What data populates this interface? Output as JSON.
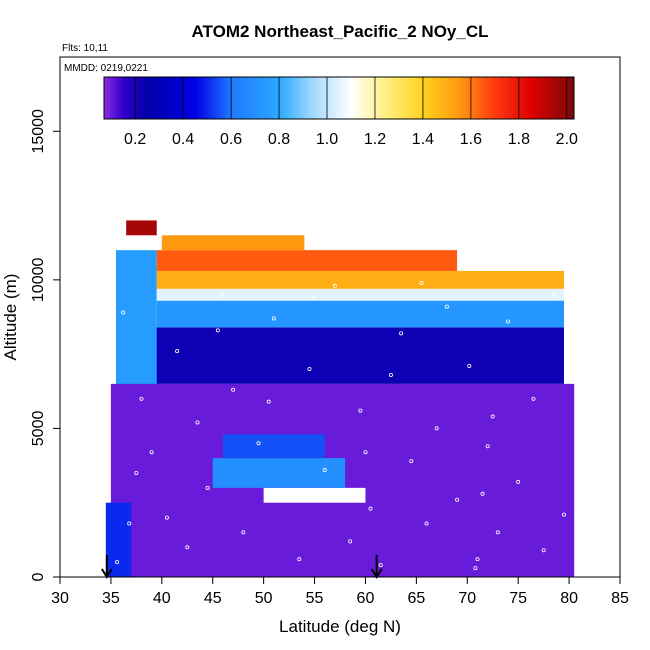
{
  "chart_data": {
    "type": "heatmap",
    "title": "ATOM2 Northeast_Pacific_2 NOy_CL",
    "flights_label": "Flts: 10,11",
    "dates_label": "MMDD: 0219,0221",
    "xlabel": "Latitude (deg N)",
    "ylabel": "Altitude (m)",
    "xlim": [
      30,
      85
    ],
    "ylim": [
      0,
      17500
    ],
    "x_ticks": [
      "30",
      "35",
      "40",
      "45",
      "50",
      "55",
      "60",
      "65",
      "70",
      "75",
      "80",
      "85"
    ],
    "y_ticks": [
      "0",
      "5000",
      "10000",
      "15000"
    ],
    "colorbar": {
      "range": [
        0.07,
        2.03
      ],
      "ticks": [
        "0.2",
        "0.4",
        "0.6",
        "0.8",
        "1.0",
        "1.2",
        "1.4",
        "1.6",
        "1.8",
        "2.0"
      ],
      "stops": [
        {
          "v": 0.07,
          "c": "#8a2be2"
        },
        {
          "v": 0.15,
          "c": "#3300cc"
        },
        {
          "v": 0.25,
          "c": "#0000a8"
        },
        {
          "v": 0.45,
          "c": "#0000e6"
        },
        {
          "v": 0.6,
          "c": "#1e78ff"
        },
        {
          "v": 0.8,
          "c": "#2aa8ff"
        },
        {
          "v": 0.95,
          "c": "#a8dcff"
        },
        {
          "v": 1.1,
          "c": "#ffffff"
        },
        {
          "v": 1.25,
          "c": "#ffef80"
        },
        {
          "v": 1.4,
          "c": "#ffd21e"
        },
        {
          "v": 1.55,
          "c": "#ff9a10"
        },
        {
          "v": 1.7,
          "c": "#ff3a10"
        },
        {
          "v": 1.85,
          "c": "#e00000"
        },
        {
          "v": 2.03,
          "c": "#7a0a0a"
        }
      ]
    },
    "cells": [
      {
        "x0": 35,
        "x1": 80.5,
        "y0": 0,
        "y1": 6500,
        "v": 0.1
      },
      {
        "x0": 35.5,
        "x1": 79.5,
        "y0": 6500,
        "y1": 8400,
        "v": 0.22
      },
      {
        "x0": 35.5,
        "x1": 39.5,
        "y0": 6500,
        "y1": 11000,
        "v": 0.75
      },
      {
        "x0": 39.5,
        "x1": 79.5,
        "y0": 8400,
        "y1": 9300,
        "v": 0.72
      },
      {
        "x0": 39.5,
        "x1": 79.5,
        "y0": 9300,
        "y1": 9700,
        "v": 1.05
      },
      {
        "x0": 39.5,
        "x1": 79.5,
        "y0": 9700,
        "y1": 10300,
        "v": 1.5
      },
      {
        "x0": 39.5,
        "x1": 69,
        "y0": 10300,
        "y1": 11000,
        "v": 1.65
      },
      {
        "x0": 40,
        "x1": 54,
        "y0": 11000,
        "y1": 11500,
        "v": 1.55
      },
      {
        "x0": 36.5,
        "x1": 39.5,
        "y0": 11500,
        "y1": 12000,
        "v": 1.95
      },
      {
        "x0": 34.5,
        "x1": 37,
        "y0": 0,
        "y1": 2500,
        "v": 0.5
      },
      {
        "x0": 50,
        "x1": 60,
        "y0": 2500,
        "y1": 3000,
        "v": 1.1
      },
      {
        "x0": 45,
        "x1": 58,
        "y0": 3000,
        "y1": 4000,
        "v": 0.7
      },
      {
        "x0": 46,
        "x1": 56,
        "y0": 4000,
        "y1": 4800,
        "v": 0.55
      }
    ],
    "observations": [
      {
        "x": 35.6,
        "y": 500
      },
      {
        "x": 36.8,
        "y": 1800
      },
      {
        "x": 38,
        "y": 6000
      },
      {
        "x": 39,
        "y": 4200
      },
      {
        "x": 40.5,
        "y": 2000
      },
      {
        "x": 41.5,
        "y": 7600
      },
      {
        "x": 42.5,
        "y": 1000
      },
      {
        "x": 43.5,
        "y": 5200
      },
      {
        "x": 44.5,
        "y": 3000
      },
      {
        "x": 46,
        "y": 9500
      },
      {
        "x": 47,
        "y": 6300
      },
      {
        "x": 48,
        "y": 1500
      },
      {
        "x": 49.5,
        "y": 4500
      },
      {
        "x": 51,
        "y": 8700
      },
      {
        "x": 52,
        "y": 2700
      },
      {
        "x": 53.5,
        "y": 600
      },
      {
        "x": 54.5,
        "y": 7000
      },
      {
        "x": 56,
        "y": 3600
      },
      {
        "x": 57,
        "y": 9800
      },
      {
        "x": 58.5,
        "y": 1200
      },
      {
        "x": 59.5,
        "y": 5600
      },
      {
        "x": 60.5,
        "y": 2300
      },
      {
        "x": 61.5,
        "y": 400
      },
      {
        "x": 62.5,
        "y": 6800
      },
      {
        "x": 63.5,
        "y": 8200
      },
      {
        "x": 64.5,
        "y": 3900
      },
      {
        "x": 66,
        "y": 1800
      },
      {
        "x": 67,
        "y": 5000
      },
      {
        "x": 68,
        "y": 9100
      },
      {
        "x": 69,
        "y": 2600
      },
      {
        "x": 70.2,
        "y": 7100
      },
      {
        "x": 71,
        "y": 600
      },
      {
        "x": 72,
        "y": 4400
      },
      {
        "x": 73,
        "y": 1500
      },
      {
        "x": 74,
        "y": 8600
      },
      {
        "x": 75,
        "y": 3200
      },
      {
        "x": 76.5,
        "y": 6000
      },
      {
        "x": 77.5,
        "y": 900
      },
      {
        "x": 78.5,
        "y": 9500
      },
      {
        "x": 79.5,
        "y": 2100
      },
      {
        "x": 70.8,
        "y": 300
      },
      {
        "x": 71.5,
        "y": 2800
      },
      {
        "x": 72.5,
        "y": 5400
      },
      {
        "x": 65.5,
        "y": 9900
      },
      {
        "x": 55,
        "y": 9400
      },
      {
        "x": 45.5,
        "y": 8300
      },
      {
        "x": 37.5,
        "y": 3500
      },
      {
        "x": 36.2,
        "y": 8900
      },
      {
        "x": 50.5,
        "y": 5900
      },
      {
        "x": 60,
        "y": 4200
      }
    ],
    "arrows": [
      {
        "x": 34.6,
        "label": "arrow"
      },
      {
        "x": 61.1,
        "label": "arrow"
      }
    ]
  }
}
